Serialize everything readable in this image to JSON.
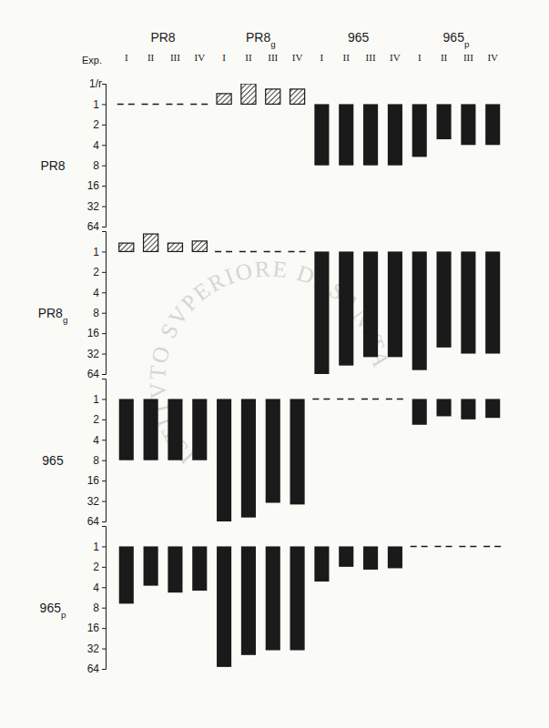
{
  "chart_data": [
    {
      "type": "bar",
      "title": "PR8",
      "groups": [
        "PR8",
        "PR8g",
        "965",
        "965p"
      ],
      "xlabel": "Exp.",
      "ylabel": "1/r",
      "categories": [
        "I",
        "II",
        "III",
        "IV",
        "I",
        "II",
        "III",
        "IV",
        "I",
        "II",
        "III",
        "IV",
        "I",
        "II",
        "III",
        "IV"
      ],
      "values": [
        1,
        1,
        1,
        1,
        0.7,
        0.5,
        0.6,
        0.6,
        8,
        8,
        8,
        8,
        6,
        3.3,
        4,
        4
      ],
      "ylim": [
        0.5,
        64
      ],
      "yticks": [
        1,
        2,
        4,
        8,
        16,
        32,
        64
      ],
      "log": "y",
      "color": "#1a1a1a"
    },
    {
      "type": "bar",
      "title": "PR8g",
      "categories": [
        null,
        null,
        null,
        null,
        null,
        null,
        null,
        null,
        null,
        null,
        null,
        null,
        null,
        null,
        null,
        null
      ],
      "values": [
        0.75,
        0.55,
        0.75,
        0.7,
        1,
        1,
        1,
        1,
        64,
        48,
        36,
        36,
        56,
        26,
        32,
        32
      ],
      "ylim": [
        0.5,
        64
      ],
      "yticks": [
        1,
        2,
        4,
        8,
        16,
        32,
        64
      ],
      "log": "y",
      "color": "#1a1a1a"
    },
    {
      "type": "bar",
      "title": "965",
      "categories": [
        null,
        null,
        null,
        null,
        null,
        null,
        null,
        null,
        null,
        null,
        null,
        null,
        null,
        null,
        null,
        null
      ],
      "values": [
        8,
        8,
        8,
        8,
        64,
        56,
        34,
        36,
        1,
        1,
        1,
        1,
        2.4,
        1.8,
        2,
        1.9
      ],
      "ylim": [
        0.5,
        64
      ],
      "yticks": [
        1,
        2,
        4,
        8,
        16,
        32,
        64
      ],
      "log": "y",
      "color": "#1a1a1a"
    },
    {
      "type": "bar",
      "title": "965p",
      "categories": [
        null,
        null,
        null,
        null,
        null,
        null,
        null,
        null,
        null,
        null,
        null,
        null,
        null,
        null,
        null,
        null
      ],
      "values": [
        7,
        3.8,
        4.8,
        4.5,
        60,
        40,
        34,
        34,
        3.3,
        2,
        2.2,
        2.1,
        1,
        1,
        1,
        1
      ],
      "ylim": [
        0.5,
        64
      ],
      "yticks": [
        1,
        2,
        4,
        8,
        16,
        32,
        64
      ],
      "log": "y",
      "color": "#1a1a1a"
    }
  ],
  "watermark": "ISTITVTO SVPERIORE DI SANITA"
}
